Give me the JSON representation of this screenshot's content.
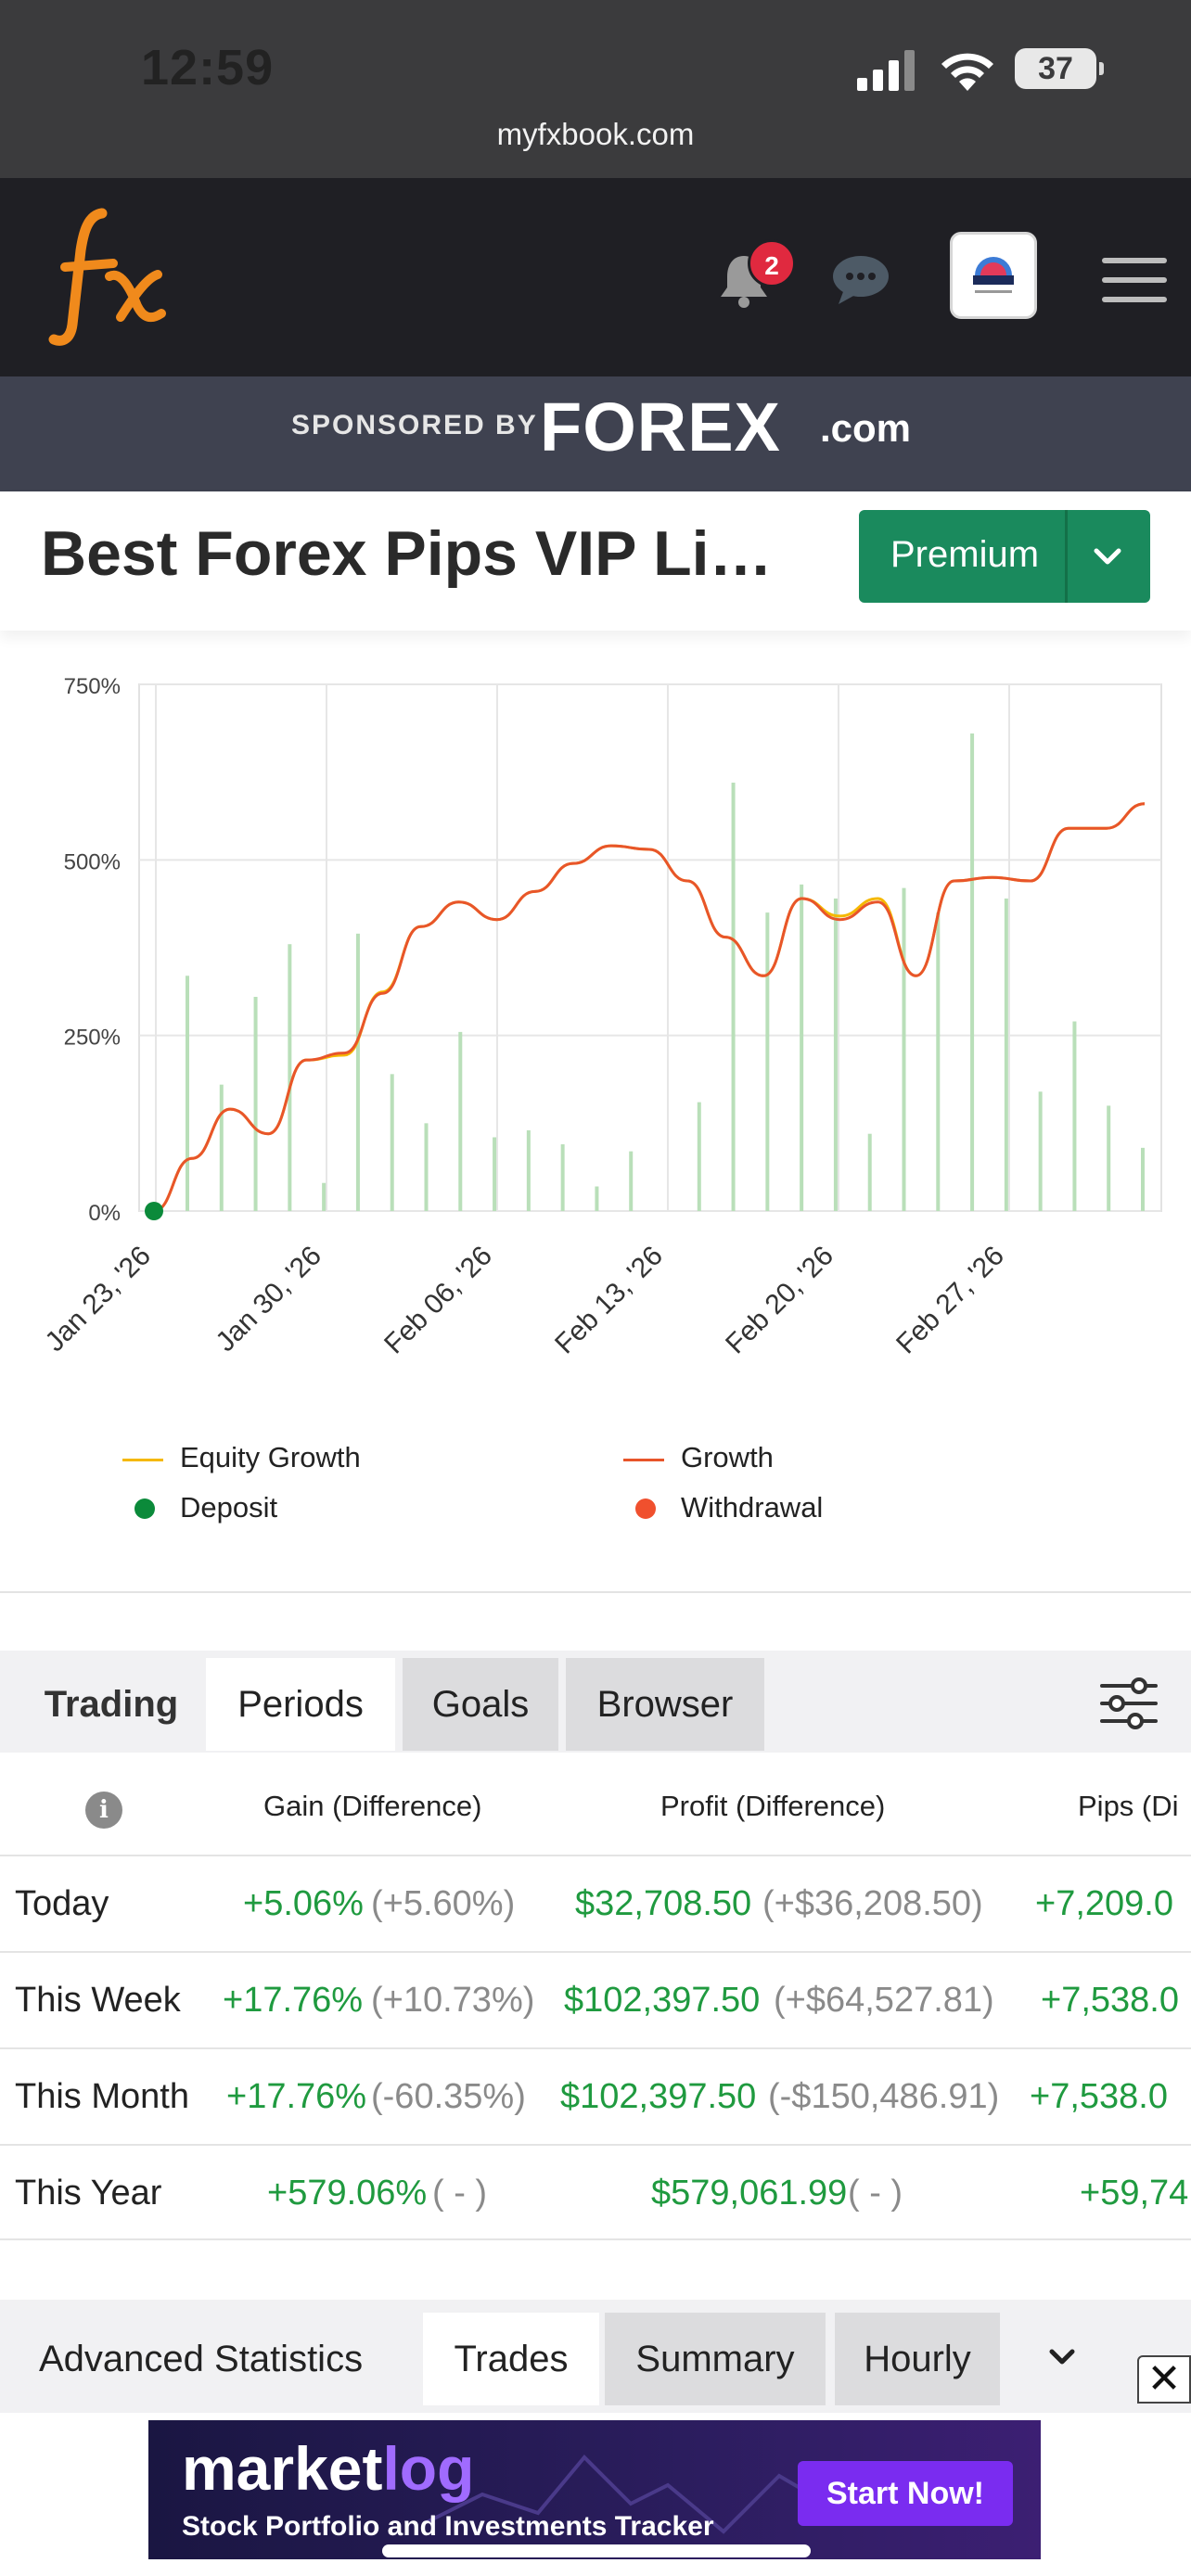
{
  "status": {
    "time": "12:59",
    "battery": "37",
    "url": "myfxbook.com"
  },
  "header": {
    "notifications_count": "2"
  },
  "sponsor": {
    "label": "SPONSORED BY",
    "brand": "FOREX",
    "domain": ".com"
  },
  "page": {
    "title": "Best Forex Pips VIP Live Account",
    "premium_label": "Premium"
  },
  "chart_data": {
    "type": "line",
    "x_ticks": [
      "Jan 23, '26",
      "Jan 30, '26",
      "Feb 06, '26",
      "Feb 13, '26",
      "Feb 20, '26",
      "Feb 27, '26"
    ],
    "y_ticks": [
      "750%",
      "500%",
      "250%",
      "0%"
    ],
    "ylim": [
      0,
      750
    ],
    "series": [
      {
        "name": "Growth",
        "color": "#e8552a",
        "values": [
          0,
          75,
          145,
          110,
          215,
          225,
          310,
          405,
          440,
          415,
          455,
          495,
          520,
          515,
          470,
          390,
          335,
          445,
          415,
          440,
          335,
          470,
          475,
          470,
          545,
          545,
          580
        ]
      },
      {
        "name": "Equity Growth",
        "color": "#f5b800",
        "values": [
          0,
          75,
          145,
          110,
          215,
          222,
          312,
          405,
          440,
          415,
          455,
          495,
          520,
          515,
          470,
          390,
          335,
          445,
          420,
          445,
          335,
          470,
          475,
          470,
          545,
          545,
          580
        ]
      },
      {
        "name": "Daily Gain bars",
        "color": "#b9dfb9",
        "values": [
          335,
          180,
          305,
          380,
          40,
          395,
          195,
          125,
          255,
          105,
          115,
          95,
          35,
          85,
          0,
          155,
          610,
          425,
          465,
          445,
          110,
          460,
          425,
          680,
          445,
          170,
          270,
          150,
          90
        ]
      }
    ],
    "deposit_point": {
      "x_index": 0,
      "value": 0
    }
  },
  "legend": {
    "equity": "Equity Growth",
    "growth": "Growth",
    "deposit": "Deposit",
    "withdrawal": "Withdrawal",
    "colors": {
      "equity": "#f5b800",
      "growth": "#e8552a",
      "deposit": "#0b8a3a",
      "withdrawal": "#f0502e"
    }
  },
  "tabs": {
    "trading": "Trading",
    "periods": "Periods",
    "goals": "Goals",
    "browser": "Browser"
  },
  "table": {
    "headers": {
      "gain": "Gain (Difference)",
      "profit": "Profit (Difference)",
      "pips": "Pips (Di"
    },
    "rows": [
      {
        "label": "Today",
        "gain": "+5.06%",
        "gain_diff": "(+5.60%)",
        "profit": "$32,708.50",
        "profit_diff": "(+$36,208.50)",
        "pips": "+7,209.0"
      },
      {
        "label": "This Week",
        "gain": "+17.76%",
        "gain_diff": "(+10.73%)",
        "profit": "$102,397.50",
        "profit_diff": "(+$64,527.81)",
        "pips": "+7,538.0"
      },
      {
        "label": "This Month",
        "gain": "+17.76%",
        "gain_diff": "(-60.35%)",
        "profit": "$102,397.50",
        "profit_diff": "(-$150,486.91)",
        "pips": "+7,538.0"
      },
      {
        "label": "This Year",
        "gain": "+579.06%",
        "gain_diff": "( - )",
        "profit": "$579,061.99",
        "profit_diff": "( - )",
        "pips": "+59,74"
      }
    ]
  },
  "advanced": {
    "title": "Advanced Statistics",
    "tabs": [
      "Trades",
      "Summary",
      "Hourly"
    ]
  },
  "ad": {
    "brand_a": "market",
    "brand_b": "log",
    "tagline": "Stock Portfolio and Investments Tracker",
    "cta": "Start Now!",
    "close": "✕"
  }
}
